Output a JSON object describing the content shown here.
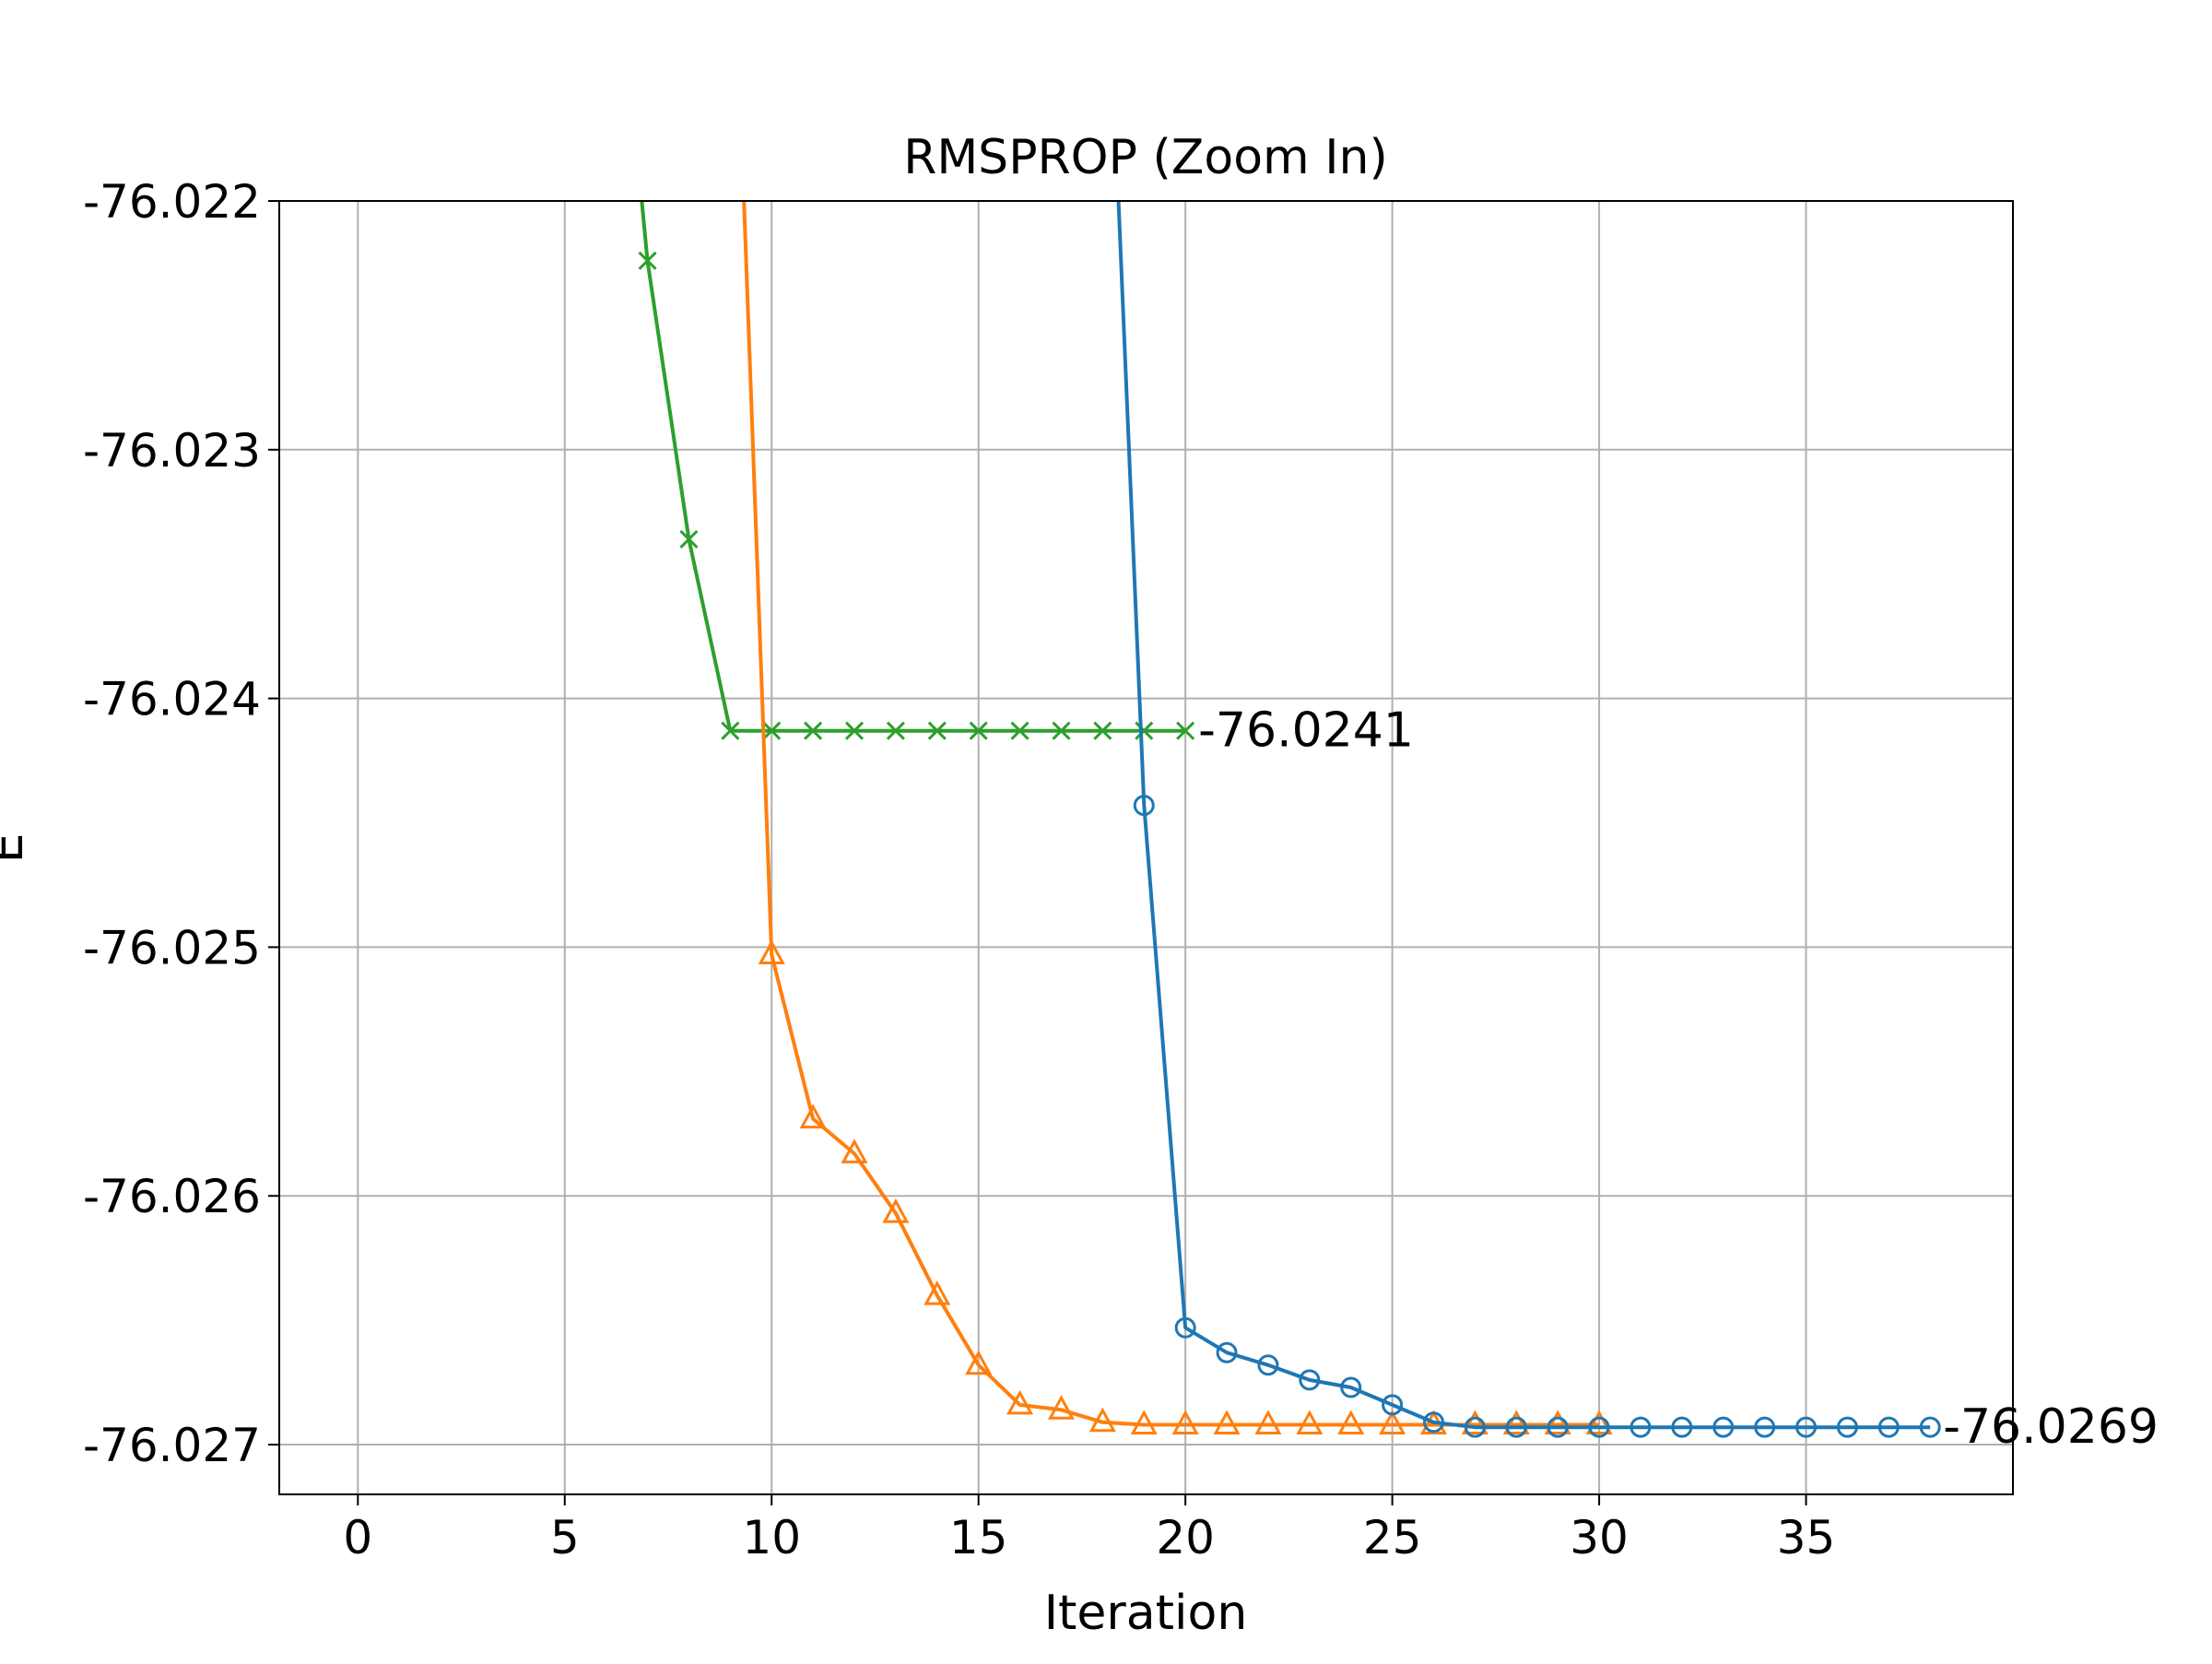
{
  "chart_data": {
    "type": "line",
    "title": "RMSPROP (Zoom In)",
    "xlabel": "Iteration",
    "ylabel": "E",
    "xlim": [
      -1.9,
      40.0
    ],
    "ylim": [
      -76.0272,
      -76.022
    ],
    "grid": true,
    "x_ticks": [
      0,
      5,
      10,
      15,
      20,
      25,
      30,
      35
    ],
    "x_tick_labels": [
      "0",
      "5",
      "10",
      "15",
      "20",
      "25",
      "30",
      "35"
    ],
    "y_ticks": [
      -76.022,
      -76.023,
      -76.024,
      -76.025,
      -76.026,
      -76.027
    ],
    "y_tick_labels": [
      "-76.022",
      "-76.023",
      "-76.024",
      "-76.025",
      "-76.026",
      "-76.027"
    ],
    "series": [
      {
        "color": "#2ca02c",
        "marker": "x",
        "x": [
          6,
          7,
          8,
          9,
          10,
          11,
          12,
          13,
          14,
          15,
          16,
          17,
          18,
          19,
          20
        ],
        "y": [
          -76.0205,
          -76.02224,
          -76.02336,
          -76.02413,
          -76.02413,
          -76.02413,
          -76.02413,
          -76.02413,
          -76.02413,
          -76.02413,
          -76.02413,
          -76.02413,
          -76.02413,
          -76.02413,
          -76.02413
        ],
        "marker_from_index": 1
      },
      {
        "color": "#ff7f0e",
        "marker": "triangle",
        "x": [
          9,
          10,
          11,
          12,
          13,
          14,
          15,
          16,
          17,
          18,
          19,
          20,
          21,
          22,
          23,
          24,
          25,
          26,
          27,
          28,
          29,
          30
        ],
        "y": [
          -76.0205,
          -76.02503,
          -76.02569,
          -76.02583,
          -76.02607,
          -76.0264,
          -76.02668,
          -76.02684,
          -76.02686,
          -76.02691,
          -76.02692,
          -76.02692,
          -76.02692,
          -76.02692,
          -76.02692,
          -76.02692,
          -76.02692,
          -76.02692,
          -76.02692,
          -76.02692,
          -76.02692,
          -76.02692
        ],
        "marker_from_index": 1
      },
      {
        "color": "#1f77b4",
        "marker": "circle",
        "x": [
          18,
          19,
          20,
          21,
          22,
          23,
          24,
          25,
          26,
          27,
          28,
          29,
          30,
          31,
          32,
          33,
          34,
          35,
          36,
          37,
          38
        ],
        "y": [
          -76.0205,
          -76.02443,
          -76.02653,
          -76.02663,
          -76.02668,
          -76.02674,
          -76.02677,
          -76.02684,
          -76.02691,
          -76.02693,
          -76.02693,
          -76.02693,
          -76.02693,
          -76.02693,
          -76.02693,
          -76.02693,
          -76.02693,
          -76.02693,
          -76.02693,
          -76.02693,
          -76.02693
        ],
        "marker_from_index": 1
      }
    ],
    "annotations": [
      {
        "text": "-76.0241",
        "x": 20,
        "y": -76.02413
      },
      {
        "text": "-76.0269",
        "x": 38,
        "y": -76.02693
      }
    ]
  }
}
